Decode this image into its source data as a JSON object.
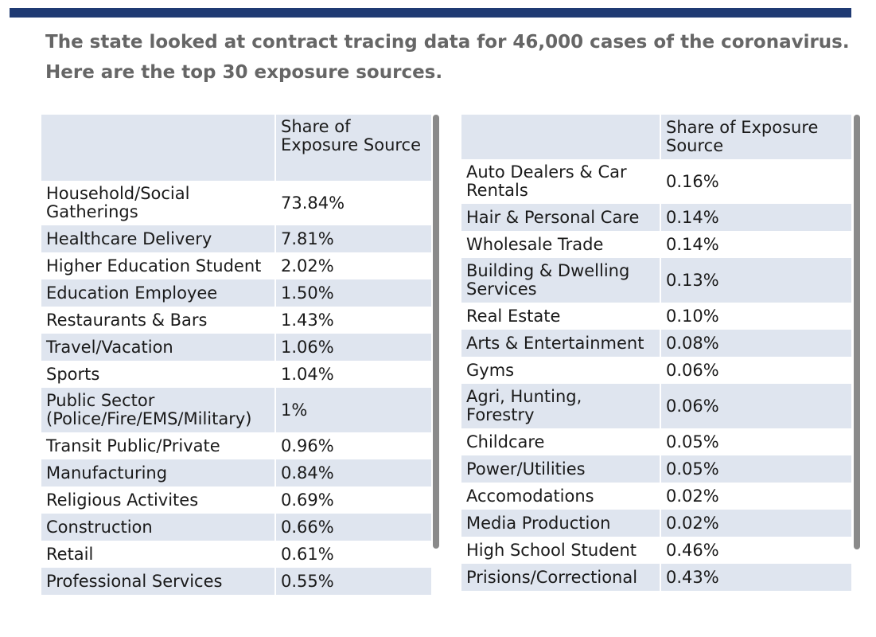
{
  "headline": {
    "line1": "The state looked at contract tracing data for 46,000 cases of the coronavirus.",
    "line2": "Here are the top 30 exposure sources."
  },
  "colors": {
    "top_bar": "#1f3a73",
    "row_shade": "#dfe5ef",
    "scrollbar": "#8a8a8a"
  },
  "chart_data": [
    {
      "type": "table",
      "columns": [
        "",
        "Share of Exposure Source"
      ],
      "rows": [
        [
          "Household/Social Gatherings",
          "73.84%"
        ],
        [
          "Healthcare Delivery",
          "7.81%"
        ],
        [
          "Higher Education Student",
          "2.02%"
        ],
        [
          "Education Employee",
          "1.50%"
        ],
        [
          "Restaurants & Bars",
          "1.43%"
        ],
        [
          "Travel/Vacation",
          "1.06%"
        ],
        [
          "Sports",
          "1.04%"
        ],
        [
          "Public Sector (Police/Fire/EMS/Military)",
          "1%"
        ],
        [
          "Transit Public/Private",
          "0.96%"
        ],
        [
          "Manufacturing",
          "0.84%"
        ],
        [
          "Religious Activites",
          "0.69%"
        ],
        [
          "Construction",
          "0.66%"
        ],
        [
          "Retail",
          "0.61%"
        ],
        [
          "Professional Services",
          "0.55%"
        ]
      ]
    },
    {
      "type": "table",
      "columns": [
        "",
        "Share of Exposure Source"
      ],
      "rows": [
        [
          "Auto Dealers & Car Rentals",
          "0.16%"
        ],
        [
          "Hair & Personal Care",
          "0.14%"
        ],
        [
          "Wholesale Trade",
          "0.14%"
        ],
        [
          "Building & Dwelling Services",
          "0.13%"
        ],
        [
          "Real Estate",
          "0.10%"
        ],
        [
          "Arts & Entertainment",
          "0.08%"
        ],
        [
          "Gyms",
          "0.06%"
        ],
        [
          "Agri, Hunting, Forestry",
          "0.06%"
        ],
        [
          "Childcare",
          "0.05%"
        ],
        [
          "Power/Utilities",
          "0.05%"
        ],
        [
          "Accomodations",
          "0.02%"
        ],
        [
          "Media Production",
          "0.02%"
        ],
        [
          "High School Student",
          "0.46%"
        ],
        [
          "Prisions/Correctional",
          "0.43%"
        ]
      ]
    }
  ]
}
